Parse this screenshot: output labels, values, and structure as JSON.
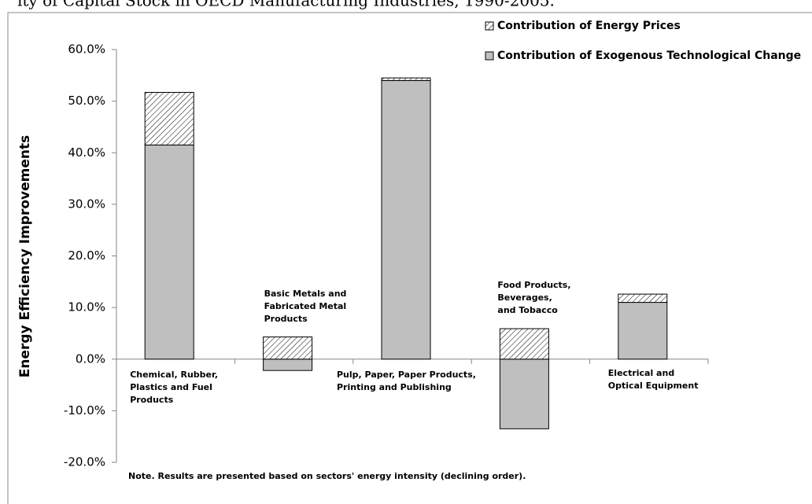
{
  "chart_data": {
    "type": "stacked_bar",
    "title": "ity of Capital Stock in OECD Manufacturing Industries, 1990-2005.",
    "y_label": "Energy Efficiency Improvements",
    "note": "Note.  Results are presented based on sectors' energy intensity (declining order).",
    "categories": [
      "Chemical, Rubber,\nPlastics and Fuel\nProducts",
      "Basic Metals and\nFabricated Metal\nProducts",
      "Pulp, Paper, Paper Products,\nPrinting and Publishing",
      "Food Products,\nBeverages,\nand Tobacco",
      "Electrical and\nOptical Equipment"
    ],
    "series": [
      {
        "name": "Contribution of Exogenous Technological Change",
        "color": "#bfbfbf",
        "pattern": "solid",
        "values": [
          41.5,
          -2.2,
          54.0,
          -13.5,
          11.0
        ]
      },
      {
        "name": "Contribution of Energy Prices",
        "color": "#ffffff",
        "pattern": "hatch",
        "values": [
          10.2,
          4.3,
          0.5,
          5.9,
          1.6
        ]
      }
    ],
    "legend_order": [
      1,
      0
    ],
    "ylim": [
      -20,
      60
    ],
    "yticks": [
      {
        "value": -20,
        "label": "-20.0%"
      },
      {
        "value": -10,
        "label": "-10.0%"
      },
      {
        "value": 0,
        "label": "0.0%"
      },
      {
        "value": 10,
        "label": "10.0%"
      },
      {
        "value": 20,
        "label": "20.0%"
      },
      {
        "value": 30,
        "label": "30.0%"
      },
      {
        "value": 40,
        "label": "40.0%"
      },
      {
        "value": 50,
        "label": "50.0%"
      },
      {
        "value": 60,
        "label": "60.0%"
      }
    ],
    "legend": "top-right",
    "grid": false
  }
}
